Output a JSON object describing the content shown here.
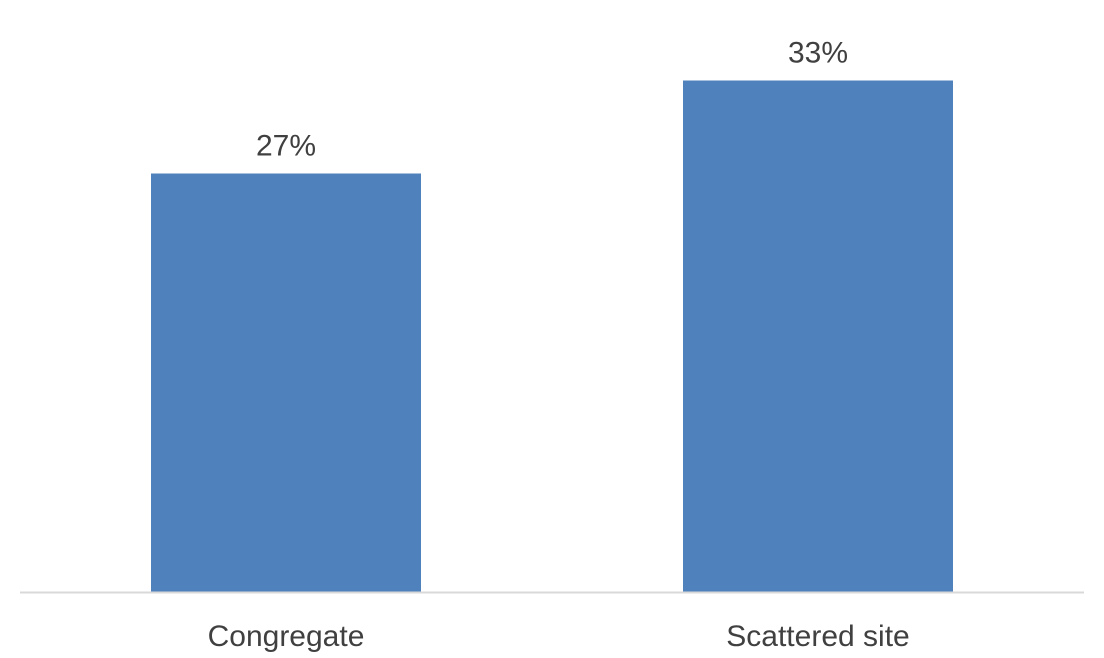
{
  "chart_data": {
    "type": "bar",
    "categories": [
      "Congregate",
      "Scattered site"
    ],
    "values": [
      27,
      33
    ],
    "value_labels": [
      "27%",
      "33%"
    ],
    "title": "",
    "xlabel": "",
    "ylabel": "",
    "ylim": [
      0,
      35
    ],
    "grid": false,
    "legend": "none",
    "colors": {
      "bar": "#4f81bd",
      "axis": "#d9d9d9",
      "text": "#404040"
    }
  }
}
